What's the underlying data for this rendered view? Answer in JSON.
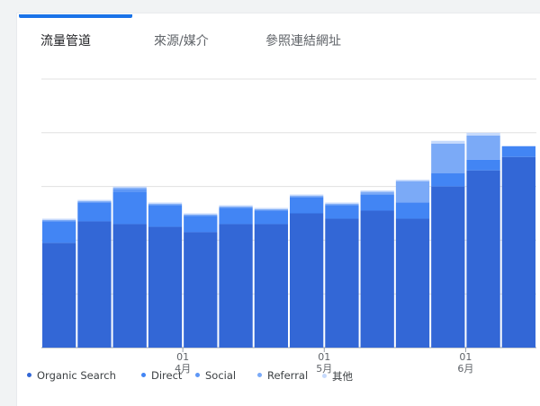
{
  "tabs": [
    {
      "label": "流量管道",
      "active": true
    },
    {
      "label": "來源/媒介",
      "active": false
    },
    {
      "label": "參照連結網址",
      "active": false
    }
  ],
  "chart_data": {
    "type": "bar",
    "stacked": true,
    "title": "",
    "xlabel": "",
    "ylabel": "",
    "ylim": [
      0,
      100
    ],
    "grid": true,
    "legend_position": "bottom",
    "categories": [
      "",
      "",
      "",
      "",
      "",
      "",
      "",
      "",
      "",
      "",
      "",
      "",
      "",
      ""
    ],
    "x_tick_labels": [
      {
        "index": 4,
        "day": "01",
        "month": "4月"
      },
      {
        "index": 8,
        "day": "01",
        "month": "5月"
      },
      {
        "index": 12,
        "day": "01",
        "month": "6月"
      }
    ],
    "series": [
      {
        "name": "Organic Search",
        "color": "#3367d6",
        "values": [
          39,
          47,
          46,
          45,
          43,
          46,
          46,
          50,
          48,
          51,
          48,
          60,
          66,
          71
        ]
      },
      {
        "name": "Direct",
        "color": "#4285f4",
        "values": [
          8,
          7,
          12,
          8,
          6,
          6,
          5,
          6,
          5,
          6,
          6,
          5,
          4,
          4
        ]
      },
      {
        "name": "Social",
        "color": "#5e97f6",
        "values": [
          0,
          0,
          1,
          0,
          0,
          0,
          0,
          0,
          0,
          0,
          0,
          0,
          0,
          0
        ]
      },
      {
        "name": "Referral",
        "color": "#7baaf7",
        "values": [
          0.5,
          0.5,
          0.5,
          0.5,
          0.5,
          0.5,
          0.5,
          0.5,
          0.5,
          1,
          8,
          11,
          9,
          0
        ]
      },
      {
        "name": "其他",
        "color": "#c6dafc",
        "values": [
          0.5,
          0.5,
          0.5,
          0.5,
          0.5,
          0.5,
          0.5,
          0.5,
          0.5,
          0.5,
          0.5,
          1,
          1,
          0
        ]
      }
    ]
  }
}
